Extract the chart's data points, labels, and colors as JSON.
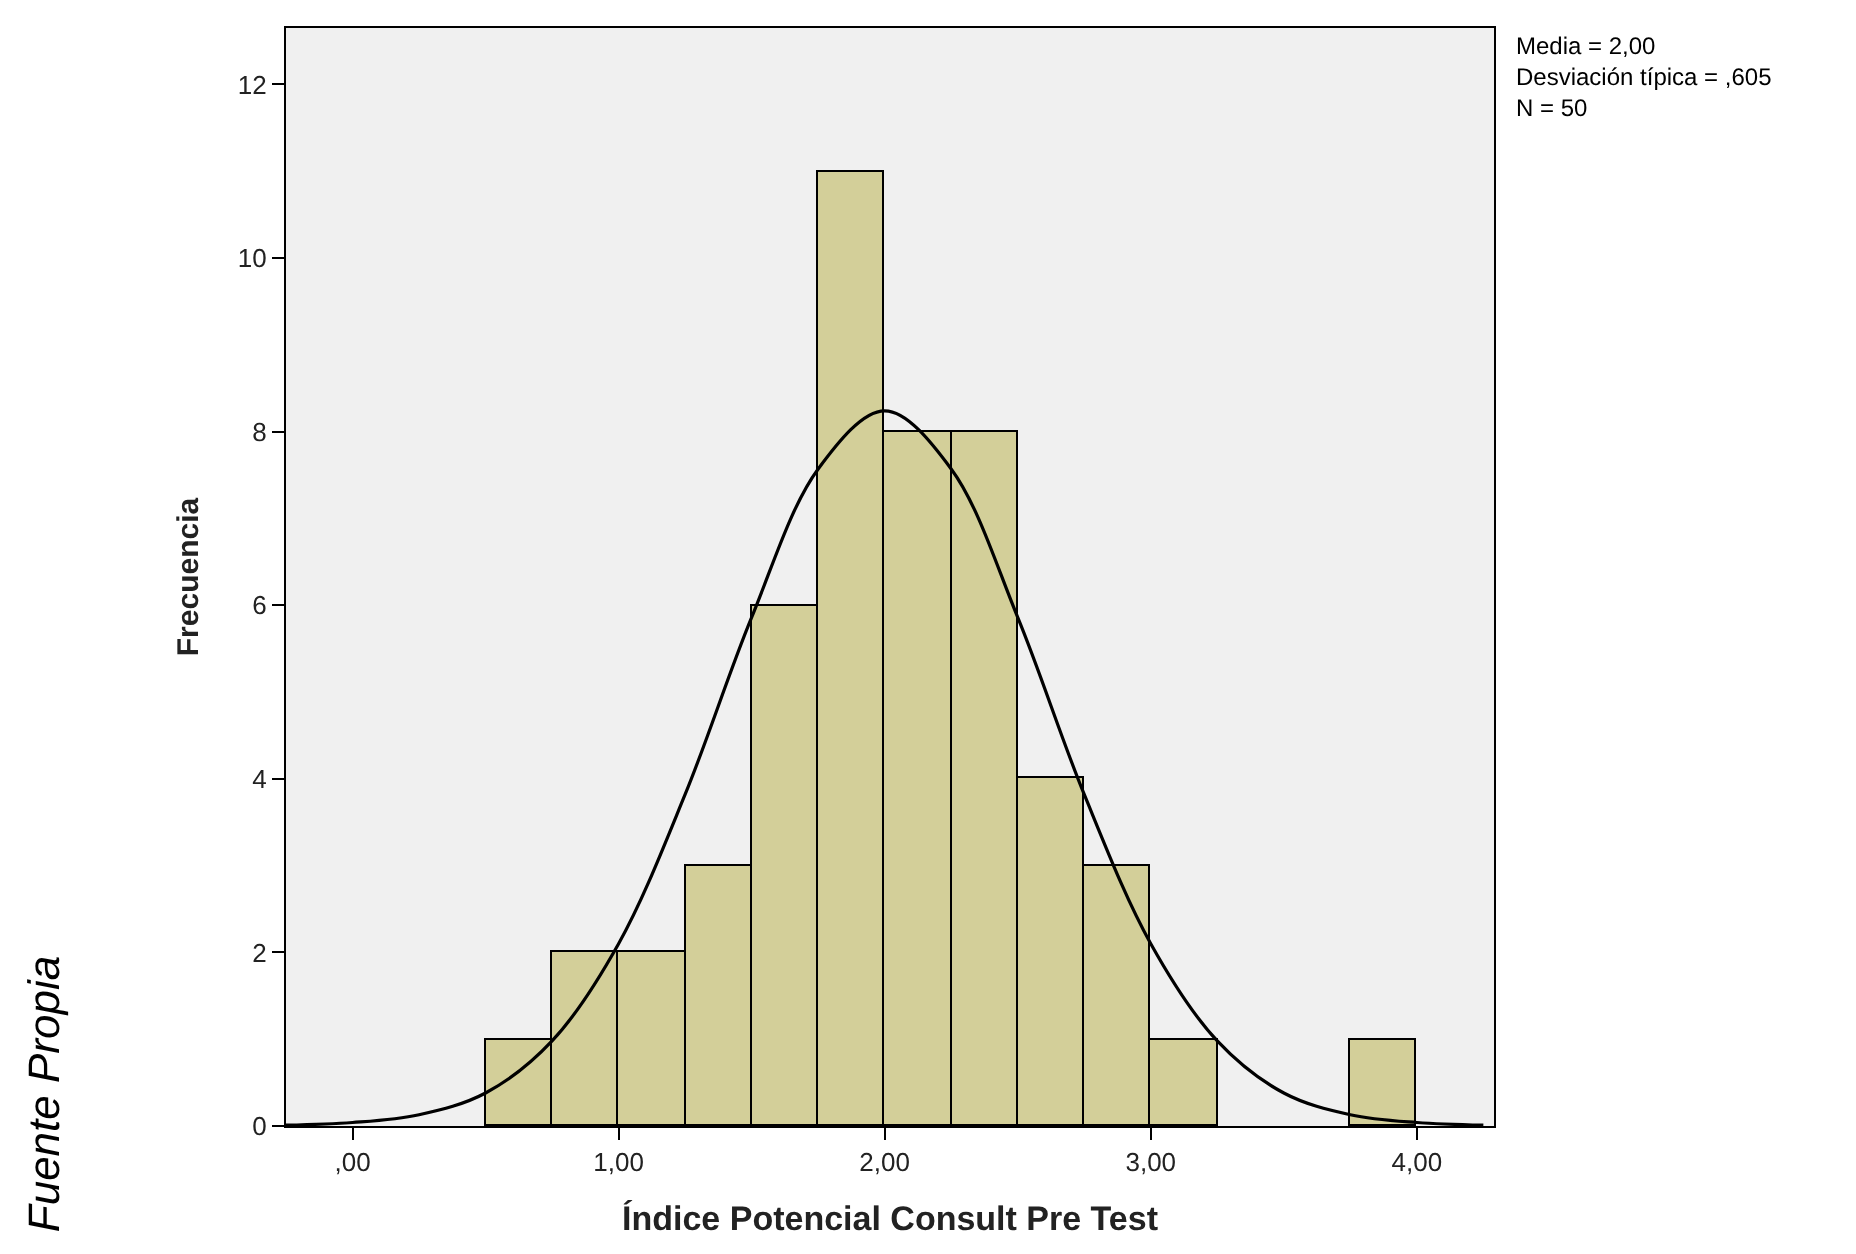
{
  "chart_data": {
    "type": "histogram",
    "xlabel": "Índice Potencial Consult Pre Test",
    "ylabel": "Frecuencia",
    "bins": [
      0.5,
      0.75,
      1.0,
      1.25,
      1.5,
      1.75,
      2.0,
      2.25,
      2.5,
      2.75,
      3.0,
      3.25,
      3.5,
      3.75,
      4.0
    ],
    "values": [
      1,
      2,
      2,
      3,
      6,
      11,
      8,
      8,
      4,
      3,
      1,
      0,
      0,
      1
    ],
    "color": "#d3cf99",
    "series": [
      {
        "type": "line",
        "color": "#000000",
        "x": [
          -0.25,
          0.0,
          0.25,
          0.5,
          0.75,
          1.0,
          1.25,
          1.5,
          1.75,
          2.0,
          2.25,
          2.5,
          2.75,
          3.0,
          3.25,
          3.5,
          3.75,
          4.0,
          4.25
        ],
        "values": [
          0.01,
          0.04,
          0.13,
          0.38,
          0.98,
          2.1,
          3.82,
          5.86,
          7.57,
          8.24,
          7.57,
          5.86,
          3.82,
          2.1,
          0.98,
          0.38,
          0.13,
          0.04,
          0.01
        ]
      }
    ],
    "xlim": [
      -0.25,
      4.29
    ],
    "xticks": [
      {
        "value": 0,
        "label": ",00"
      },
      {
        "value": 1,
        "label": "1,00"
      },
      {
        "value": 2,
        "label": "2,00"
      },
      {
        "value": 3,
        "label": "3,00"
      },
      {
        "value": 4,
        "label": "4,00"
      }
    ],
    "ylim": [
      0,
      12.65
    ],
    "yticks": [
      0,
      2,
      4,
      6,
      8,
      10,
      12
    ],
    "grid": false,
    "annotations": [
      "Media = 2,00\nDesviación típica = ,605\nN = 50",
      "Fuente Propia"
    ]
  }
}
